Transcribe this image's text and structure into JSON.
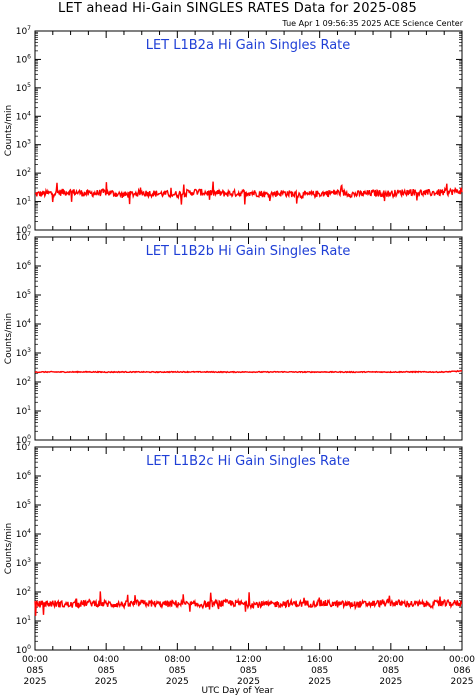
{
  "header": {
    "title": "LET ahead Hi-Gain SINGLES RATES Data for 2025-085",
    "timestamp": "Tue Apr  1 09:56:35 2025 ACE Science Center"
  },
  "x_axis": {
    "label": "UTC Day of Year",
    "ticks": [
      {
        "hours": 0,
        "time": "00:00",
        "doy": "085",
        "year": "2025"
      },
      {
        "hours": 4,
        "time": "04:00",
        "doy": "085",
        "year": "2025"
      },
      {
        "hours": 8,
        "time": "08:00",
        "doy": "085",
        "year": "2025"
      },
      {
        "hours": 12,
        "time": "12:00",
        "doy": "085",
        "year": "2025"
      },
      {
        "hours": 16,
        "time": "16:00",
        "doy": "085",
        "year": "2025"
      },
      {
        "hours": 20,
        "time": "20:00",
        "doy": "085",
        "year": "2025"
      },
      {
        "hours": 24,
        "time": "00:00",
        "doy": "086",
        "year": "2025"
      }
    ]
  },
  "colors": {
    "data_line": "#ff0000",
    "panel_title": "#1f3fd6",
    "axis": "#000000"
  },
  "chart_data": [
    {
      "type": "line",
      "title": "LET L1B2a Hi Gain Singles Rate",
      "ylabel": "Counts/min",
      "yscale": "log",
      "ylim": [
        1,
        10000000
      ],
      "xlim": [
        0,
        24
      ],
      "xunit": "hours of DOY 085",
      "ytick_exponents": [
        0,
        1,
        2,
        3,
        4,
        5,
        6,
        7
      ],
      "series": [
        {
          "x": [
            0,
            1,
            2,
            3,
            4,
            5,
            6,
            7,
            8,
            9,
            10,
            11,
            12,
            13,
            14,
            15,
            16,
            17,
            18,
            19,
            20,
            21,
            22,
            23,
            24
          ],
          "values": [
            18,
            20,
            22,
            19,
            21,
            17,
            20,
            19,
            18,
            22,
            20,
            19,
            21,
            18,
            20,
            17,
            19,
            21,
            18,
            20,
            19,
            22,
            20,
            21,
            24
          ]
        }
      ]
    },
    {
      "type": "line",
      "title": "LET L1B2b Hi Gain Singles Rate",
      "ylabel": "Counts/min",
      "yscale": "log",
      "ylim": [
        1,
        10000000
      ],
      "xlim": [
        0,
        24
      ],
      "xunit": "hours of DOY 085",
      "ytick_exponents": [
        0,
        1,
        2,
        3,
        4,
        5,
        6,
        7
      ],
      "series": [
        {
          "x": [
            0,
            1,
            2,
            3,
            4,
            5,
            6,
            7,
            8,
            9,
            10,
            11,
            12,
            13,
            14,
            15,
            16,
            17,
            18,
            19,
            20,
            21,
            22,
            23,
            24
          ],
          "values": [
            220,
            222,
            221,
            223,
            220,
            222,
            221,
            220,
            223,
            222,
            221,
            220,
            222,
            221,
            223,
            220,
            222,
            221,
            220,
            222,
            221,
            223,
            222,
            221,
            240
          ]
        }
      ]
    },
    {
      "type": "line",
      "title": "LET L1B2c Hi Gain Singles Rate",
      "ylabel": "Counts/min",
      "yscale": "log",
      "ylim": [
        1,
        10000000
      ],
      "xlim": [
        0,
        24
      ],
      "xunit": "hours of DOY 085",
      "ytick_exponents": [
        0,
        1,
        2,
        3,
        4,
        5,
        6,
        7
      ],
      "series": [
        {
          "x": [
            0,
            1,
            2,
            3,
            4,
            5,
            6,
            7,
            8,
            9,
            10,
            11,
            12,
            13,
            14,
            15,
            16,
            17,
            18,
            19,
            20,
            21,
            22,
            23,
            24
          ],
          "values": [
            38,
            40,
            36,
            42,
            39,
            37,
            41,
            38,
            40,
            36,
            39,
            42,
            38,
            37,
            40,
            39,
            41,
            38,
            37,
            40,
            42,
            39,
            38,
            40,
            41
          ]
        }
      ]
    }
  ]
}
